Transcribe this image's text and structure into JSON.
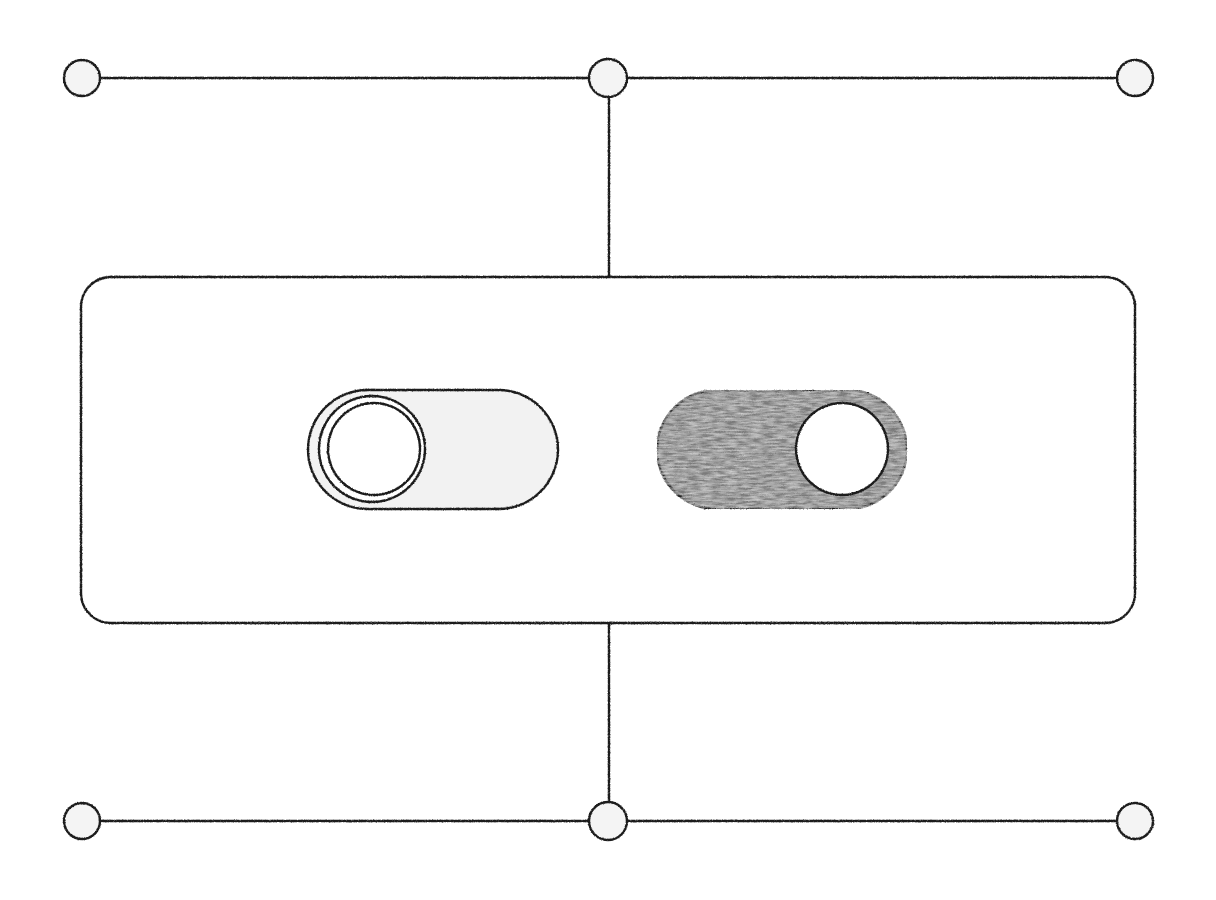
{
  "colors": {
    "background": "#ffffff",
    "stroke": "#1c1c1c",
    "node_fill": "#f4f4f4",
    "toggle_off_track": "#f2f2f2",
    "toggle_on_track": "#7a7a7a",
    "knob_fill": "#ffffff"
  },
  "toggles": [
    {
      "id": "toggle-off",
      "state": "off"
    },
    {
      "id": "toggle-on",
      "state": "on"
    }
  ],
  "icons": {
    "connector_node": "circle-node-icon"
  }
}
